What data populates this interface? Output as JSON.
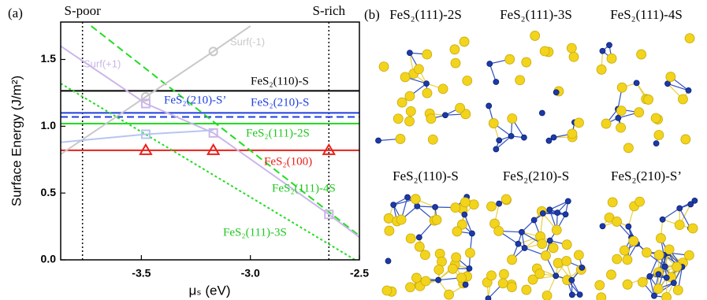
{
  "chart_data": {
    "type": "line",
    "panel_label": "(a)",
    "x_label": "μₛ (eV)",
    "y_label": "Surface Energy (J/m²)",
    "xlim": [
      -3.87,
      -2.5
    ],
    "ylim": [
      0,
      1.78
    ],
    "xticks": [
      -3.5,
      {
        "value": -3.0,
        "label": "-3.0"
      },
      -2.5
    ],
    "yticks": [
      {
        "value": 0,
        "label": "0.0"
      },
      0.5,
      {
        "value": 1,
        "label": "1.0"
      },
      1.5
    ],
    "vlines": [
      {
        "value": -3.77,
        "label": "S-poor"
      },
      {
        "value": -2.64,
        "label": "S-rich"
      }
    ],
    "series": [
      {
        "name": "FeS₂(110)-S",
        "color": "#000000",
        "dash": "solid",
        "x": [
          -3.87,
          -2.5
        ],
        "values": [
          1.265,
          1.265
        ]
      },
      {
        "name": "FeS₂(210)-S’",
        "color": "#1f3fe0",
        "dash": "dashed",
        "x": [
          -3.87,
          -2.5
        ],
        "values": [
          1.07,
          1.07
        ]
      },
      {
        "name": "FeS₂(210)-S",
        "color": "#1f3fe0",
        "dash": "solid",
        "x": [
          -3.87,
          -2.5
        ],
        "values": [
          1.1,
          1.1
        ]
      },
      {
        "name": "FeS₂(111)-2S",
        "color": "#22dd22",
        "dash": "solid",
        "x": [
          -3.87,
          -2.5
        ],
        "values": [
          1.02,
          1.02
        ]
      },
      {
        "name": "FeS₂(100)",
        "color": "#e8201a",
        "dash": "solid",
        "marker": "triangle",
        "x": [
          -3.87,
          -3.48,
          -3.17,
          -2.64,
          -2.5
        ],
        "values": [
          0.82,
          0.82,
          0.82,
          0.82,
          0.82
        ]
      },
      {
        "name": "FeS₂(111)-4S",
        "color": "#22dd22",
        "dash": "dashed",
        "x": [
          -3.73,
          -2.5
        ],
        "values": [
          1.75,
          0.18
        ]
      },
      {
        "name": "FeS₂(111)-3S",
        "color": "#22dd22",
        "dash": "dotted",
        "x": [
          -3.87,
          -2.52
        ],
        "values": [
          1.32,
          0.0
        ]
      },
      {
        "name": "Surf(-1)",
        "color": "#c8c8c8",
        "dash": "solid",
        "marker": "circle",
        "x": [
          -3.87,
          -3.48,
          -3.17,
          -3.0
        ],
        "values": [
          0.79,
          1.22,
          1.56,
          1.75
        ]
      },
      {
        "name": "Surf(+1)",
        "color": "#cbb6e8",
        "dash": "solid",
        "marker": "square",
        "x": [
          -3.87,
          -3.48,
          -3.17,
          -2.64,
          -2.5
        ],
        "values": [
          1.6,
          1.17,
          0.95,
          0.34,
          0.17
        ]
      },
      {
        "color": "#b6c6f0",
        "dash": "solid",
        "marker": "square",
        "x": [
          -3.87,
          -3.48,
          -3.17
        ],
        "values": [
          0.88,
          0.94,
          0.97
        ]
      }
    ]
  },
  "structures": {
    "panel_label": "(b)",
    "labels": [
      "FeS₂(111)-2S",
      "FeS₂(111)-3S",
      "FeS₂(111)-4S",
      "FeS₂(110)-S",
      "FeS₂(210)-S",
      "FeS₂(210)-S’"
    ]
  }
}
